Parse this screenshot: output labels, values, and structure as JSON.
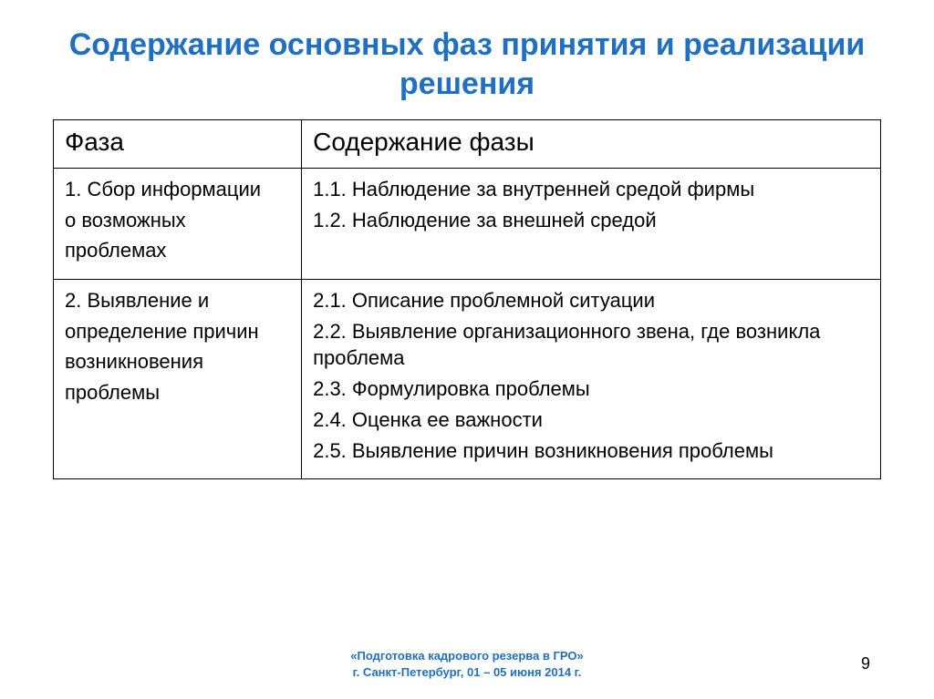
{
  "title": "Содержание основных фаз принятия и реализации решения",
  "title_color": "#1f6fc3",
  "title_fontsize": 34,
  "table": {
    "border_color": "#000000",
    "header_fontsize": 28,
    "body_fontsize": 22,
    "columns": [
      "Фаза",
      "Содержание фазы"
    ],
    "rows": [
      {
        "phase": [
          "1. Сбор информации",
          "о возможных",
          "проблемах"
        ],
        "content": [
          "1.1. Наблюдение за внутренней средой фирмы",
          "1.2. Наблюдение за внешней средой"
        ]
      },
      {
        "phase": [
          "2. Выявление и",
          "определение причин",
          "возникновения",
          "проблемы"
        ],
        "content": [
          "2.1. Описание проблемной ситуации",
          "2.2. Выявление организационного звена, где возникла проблема",
          "2.3. Формулировка проблемы",
          "2.4. Оценка ее важности",
          "2.5. Выявление причин возникновения проблемы"
        ]
      }
    ]
  },
  "footer": {
    "line1": "«Подготовка кадрового резерва в ГРО»",
    "line2": "г. Санкт-Петербург, 01 – 05 июня 2014 г.",
    "color": "#1f6fc3",
    "fontsize": 13
  },
  "page_number": "9"
}
